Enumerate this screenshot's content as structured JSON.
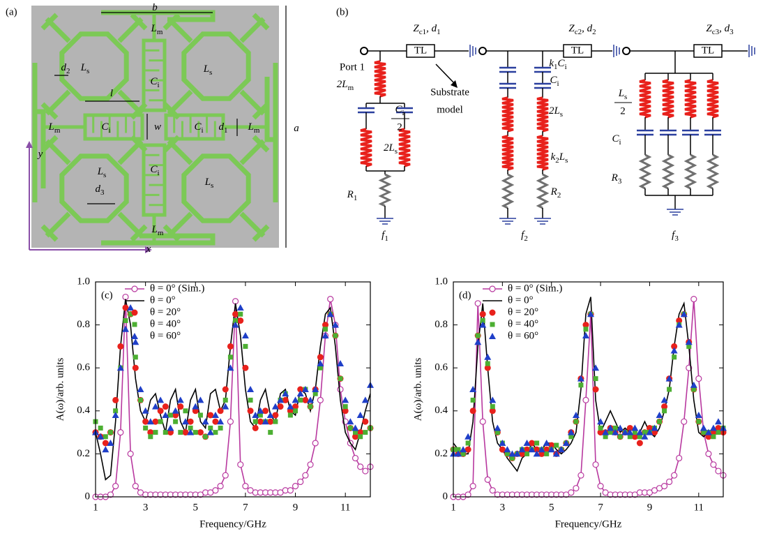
{
  "panel_a": {
    "label": "(a)",
    "labels": [
      [
        "b"
      ],
      [
        "L",
        "m"
      ],
      [
        "d",
        "2"
      ],
      [
        "L",
        "s"
      ],
      [
        "L",
        "s"
      ],
      [
        "C",
        "i"
      ],
      [
        "l"
      ],
      [
        "L",
        "m"
      ],
      [
        "C",
        "i"
      ],
      [
        "w"
      ],
      [
        "C",
        "i"
      ],
      [
        "d",
        "1"
      ],
      [
        "L",
        "m"
      ],
      [
        "a"
      ],
      [
        "y"
      ],
      [
        "L",
        "s"
      ],
      [
        "C",
        "i"
      ],
      [
        "L",
        "s"
      ],
      [
        "d",
        "3"
      ],
      [
        "L",
        "m"
      ],
      [
        "x"
      ]
    ]
  },
  "panel_b": {
    "label": "(b)",
    "labels": [
      [
        "Z",
        "c1",
        ", d",
        "1"
      ],
      "TL",
      [
        "Z",
        "c2",
        ", d",
        "2"
      ],
      "TL",
      [
        "Z",
        "c3",
        ", d",
        "3"
      ],
      "TL",
      "Port 1",
      [
        "2L",
        "m"
      ],
      [
        "C",
        "i"
      ],
      "2",
      "Substrate",
      "model",
      [
        "2L",
        "s"
      ],
      [
        "R",
        "1"
      ],
      [
        "f",
        "1"
      ],
      [
        "k",
        "1",
        "C",
        "i"
      ],
      [
        "C",
        "i"
      ],
      [
        "2L",
        "s"
      ],
      [
        "k",
        "2",
        "L",
        "s"
      ],
      [
        "R",
        "2"
      ],
      [
        "f",
        "2"
      ],
      [
        "L",
        "s"
      ],
      "2",
      [
        "C",
        "i"
      ],
      [
        "R",
        "3"
      ],
      [
        "f",
        "3"
      ]
    ]
  },
  "chart_data": [
    {
      "type": "line",
      "label": "(c)",
      "xlabel": "Frequency/GHz",
      "ylabel": "A(ω)/arb. units",
      "xlim": [
        1,
        12
      ],
      "ylim": [
        0,
        1
      ],
      "xticks": [
        1,
        3,
        5,
        7,
        9,
        11
      ],
      "yticks": [
        0,
        0.2,
        0.4,
        0.6,
        0.8,
        {
          "value": 1,
          "label": "1.0"
        }
      ],
      "legend": "upper left",
      "x": [
        1,
        1.2,
        1.4,
        1.6,
        1.8,
        2,
        2.2,
        2.4,
        2.6,
        2.8,
        3,
        3.2,
        3.4,
        3.6,
        3.8,
        4,
        4.2,
        4.4,
        4.6,
        4.8,
        5,
        5.2,
        5.4,
        5.6,
        5.8,
        6,
        6.2,
        6.4,
        6.6,
        6.8,
        7,
        7.2,
        7.4,
        7.6,
        7.8,
        8,
        8.2,
        8.4,
        8.6,
        8.8,
        9,
        9.2,
        9.4,
        9.6,
        9.8,
        10,
        10.2,
        10.4,
        10.6,
        10.8,
        11,
        11.2,
        11.4,
        11.6,
        11.8,
        12
      ],
      "series": [
        {
          "name": "θ = 0° (Sim.)",
          "color": "#b8389f",
          "marker": "circle-open",
          "line": true,
          "values": [
            0,
            0,
            0,
            0.01,
            0.05,
            0.3,
            0.93,
            0.2,
            0.05,
            0.02,
            0.01,
            0.01,
            0.01,
            0.01,
            0.01,
            0.01,
            0.01,
            0.01,
            0.01,
            0.01,
            0.01,
            0.01,
            0.02,
            0.02,
            0.03,
            0.05,
            0.1,
            0.35,
            0.91,
            0.15,
            0.05,
            0.03,
            0.02,
            0.02,
            0.02,
            0.02,
            0.02,
            0.02,
            0.03,
            0.03,
            0.05,
            0.07,
            0.1,
            0.15,
            0.25,
            0.45,
            0.75,
            0.92,
            0.8,
            0.5,
            0.35,
            0.25,
            0.18,
            0.14,
            0.12,
            0.14
          ]
        },
        {
          "name": "θ = 0°",
          "color": "#000000",
          "marker": "none",
          "line": true,
          "values": [
            0.3,
            0.2,
            0.08,
            0.1,
            0.35,
            0.7,
            0.92,
            0.8,
            0.55,
            0.4,
            0.35,
            0.45,
            0.48,
            0.38,
            0.3,
            0.45,
            0.5,
            0.35,
            0.3,
            0.45,
            0.5,
            0.35,
            0.32,
            0.48,
            0.5,
            0.4,
            0.45,
            0.7,
            0.9,
            0.75,
            0.5,
            0.35,
            0.32,
            0.45,
            0.5,
            0.38,
            0.35,
            0.48,
            0.5,
            0.4,
            0.38,
            0.5,
            0.48,
            0.4,
            0.5,
            0.7,
            0.85,
            0.88,
            0.7,
            0.45,
            0.3,
            0.25,
            0.22,
            0.3,
            0.4,
            0.48
          ]
        },
        {
          "name": "θ = 20°",
          "color": "#e8211c",
          "marker": "circle",
          "line": false,
          "values": [
            0.3,
            0.28,
            0.25,
            0.3,
            0.45,
            0.7,
            0.88,
            0.85,
            0.6,
            0.45,
            0.35,
            0.3,
            0.35,
            0.4,
            0.42,
            0.3,
            0.38,
            0.42,
            0.3,
            0.35,
            0.4,
            0.3,
            0.28,
            0.38,
            0.35,
            0.4,
            0.5,
            0.7,
            0.85,
            0.82,
            0.6,
            0.4,
            0.32,
            0.35,
            0.4,
            0.35,
            0.38,
            0.42,
            0.45,
            0.4,
            0.42,
            0.5,
            0.45,
            0.42,
            0.5,
            0.65,
            0.8,
            0.85,
            0.75,
            0.55,
            0.4,
            0.32,
            0.28,
            0.3,
            0.35,
            0.32
          ]
        },
        {
          "name": "θ = 40°",
          "color": "#4caf32",
          "marker": "square",
          "line": false,
          "values": [
            0.35,
            0.32,
            0.28,
            0.3,
            0.4,
            0.6,
            0.82,
            0.85,
            0.65,
            0.45,
            0.32,
            0.28,
            0.3,
            0.35,
            0.3,
            0.38,
            0.35,
            0.3,
            0.4,
            0.32,
            0.3,
            0.38,
            0.28,
            0.32,
            0.3,
            0.32,
            0.45,
            0.65,
            0.82,
            0.85,
            0.7,
            0.45,
            0.35,
            0.38,
            0.35,
            0.3,
            0.35,
            0.45,
            0.48,
            0.38,
            0.4,
            0.45,
            0.5,
            0.42,
            0.48,
            0.6,
            0.78,
            0.85,
            0.75,
            0.55,
            0.42,
            0.32,
            0.3,
            0.28,
            0.3,
            0.32
          ]
        },
        {
          "name": "θ = 60°",
          "color": "#1f3fc8",
          "marker": "triangle",
          "line": false,
          "values": [
            0.3,
            0.28,
            0.22,
            0.25,
            0.38,
            0.6,
            0.78,
            0.88,
            0.72,
            0.5,
            0.4,
            0.35,
            0.42,
            0.45,
            0.38,
            0.32,
            0.4,
            0.45,
            0.35,
            0.3,
            0.42,
            0.45,
            0.35,
            0.3,
            0.38,
            0.35,
            0.42,
            0.6,
            0.8,
            0.88,
            0.75,
            0.5,
            0.38,
            0.4,
            0.35,
            0.38,
            0.42,
            0.45,
            0.48,
            0.42,
            0.45,
            0.48,
            0.5,
            0.45,
            0.5,
            0.62,
            0.75,
            0.85,
            0.8,
            0.62,
            0.45,
            0.35,
            0.32,
            0.38,
            0.45,
            0.52
          ]
        }
      ]
    },
    {
      "type": "line",
      "label": "(d)",
      "xlabel": "Frequency/GHz",
      "ylabel": "A(ω)/arb. units",
      "xlim": [
        1,
        12
      ],
      "ylim": [
        0,
        1
      ],
      "xticks": [
        1,
        3,
        5,
        7,
        9,
        11
      ],
      "yticks": [
        0,
        0.2,
        0.4,
        0.6,
        0.8,
        {
          "value": 1,
          "label": "1.0"
        }
      ],
      "legend": "upper left",
      "x": [
        1,
        1.2,
        1.4,
        1.6,
        1.8,
        2,
        2.2,
        2.4,
        2.6,
        2.8,
        3,
        3.2,
        3.4,
        3.6,
        3.8,
        4,
        4.2,
        4.4,
        4.6,
        4.8,
        5,
        5.2,
        5.4,
        5.6,
        5.8,
        6,
        6.2,
        6.4,
        6.6,
        6.8,
        7,
        7.2,
        7.4,
        7.6,
        7.8,
        8,
        8.2,
        8.4,
        8.6,
        8.8,
        9,
        9.2,
        9.4,
        9.6,
        9.8,
        10,
        10.2,
        10.4,
        10.6,
        10.8,
        11,
        11.2,
        11.4,
        11.6,
        11.8,
        12
      ],
      "series": [
        {
          "name": "θ = 0° (Sim.)",
          "color": "#b8389f",
          "marker": "circle-open",
          "line": true,
          "values": [
            0,
            0,
            0,
            0.01,
            0.05,
            0.9,
            0.35,
            0.08,
            0.03,
            0.01,
            0.01,
            0.01,
            0.01,
            0.01,
            0.01,
            0.01,
            0.01,
            0.01,
            0.01,
            0.01,
            0.01,
            0.01,
            0.01,
            0.01,
            0.02,
            0.04,
            0.1,
            0.45,
            0.85,
            0.15,
            0.05,
            0.02,
            0.01,
            0.01,
            0.01,
            0.01,
            0.01,
            0.01,
            0.02,
            0.02,
            0.02,
            0.03,
            0.04,
            0.05,
            0.07,
            0.1,
            0.18,
            0.35,
            0.6,
            0.92,
            0.55,
            0.3,
            0.2,
            0.15,
            0.12,
            0.1
          ]
        },
        {
          "name": "θ = 0°",
          "color": "#000000",
          "marker": "none",
          "line": true,
          "values": [
            0.25,
            0.22,
            0.2,
            0.2,
            0.35,
            0.7,
            0.9,
            0.6,
            0.35,
            0.25,
            0.22,
            0.18,
            0.15,
            0.12,
            0.18,
            0.2,
            0.25,
            0.22,
            0.22,
            0.25,
            0.25,
            0.22,
            0.2,
            0.22,
            0.25,
            0.3,
            0.5,
            0.85,
            0.93,
            0.45,
            0.3,
            0.35,
            0.4,
            0.35,
            0.3,
            0.32,
            0.3,
            0.28,
            0.3,
            0.35,
            0.3,
            0.28,
            0.32,
            0.4,
            0.5,
            0.7,
            0.85,
            0.9,
            0.7,
            0.45,
            0.3,
            0.28,
            0.3,
            0.32,
            0.3,
            0.3
          ]
        },
        {
          "name": "θ = 20°",
          "color": "#e8211c",
          "marker": "circle",
          "line": false,
          "values": [
            0.22,
            0.2,
            0.2,
            0.22,
            0.4,
            0.75,
            0.85,
            0.6,
            0.4,
            0.3,
            0.22,
            0.2,
            0.18,
            0.2,
            0.2,
            0.22,
            0.25,
            0.22,
            0.2,
            0.22,
            0.24,
            0.2,
            0.22,
            0.25,
            0.3,
            0.35,
            0.55,
            0.8,
            0.85,
            0.5,
            0.3,
            0.3,
            0.32,
            0.3,
            0.28,
            0.3,
            0.32,
            0.28,
            0.25,
            0.3,
            0.32,
            0.3,
            0.35,
            0.42,
            0.55,
            0.7,
            0.82,
            0.85,
            0.72,
            0.5,
            0.35,
            0.3,
            0.28,
            0.3,
            0.32,
            0.3
          ]
        },
        {
          "name": "θ = 40°",
          "color": "#4caf32",
          "marker": "square",
          "line": false,
          "values": [
            0.22,
            0.22,
            0.2,
            0.25,
            0.45,
            0.75,
            0.82,
            0.62,
            0.42,
            0.3,
            0.25,
            0.2,
            0.18,
            0.2,
            0.22,
            0.2,
            0.22,
            0.25,
            0.22,
            0.2,
            0.22,
            0.24,
            0.22,
            0.25,
            0.28,
            0.35,
            0.52,
            0.78,
            0.85,
            0.55,
            0.32,
            0.28,
            0.3,
            0.32,
            0.28,
            0.3,
            0.28,
            0.3,
            0.28,
            0.3,
            0.3,
            0.32,
            0.35,
            0.4,
            0.5,
            0.65,
            0.8,
            0.85,
            0.7,
            0.5,
            0.35,
            0.3,
            0.3,
            0.28,
            0.3,
            0.32
          ]
        },
        {
          "name": "θ = 60°",
          "color": "#1f3fc8",
          "marker": "triangle",
          "line": false,
          "values": [
            0.2,
            0.2,
            0.22,
            0.28,
            0.5,
            0.72,
            0.8,
            0.65,
            0.45,
            0.32,
            0.25,
            0.22,
            0.2,
            0.2,
            0.22,
            0.25,
            0.22,
            0.2,
            0.22,
            0.25,
            0.22,
            0.2,
            0.22,
            0.25,
            0.3,
            0.38,
            0.55,
            0.75,
            0.85,
            0.6,
            0.35,
            0.3,
            0.32,
            0.3,
            0.32,
            0.3,
            0.3,
            0.32,
            0.3,
            0.28,
            0.3,
            0.32,
            0.38,
            0.45,
            0.55,
            0.68,
            0.8,
            0.85,
            0.72,
            0.52,
            0.38,
            0.32,
            0.3,
            0.32,
            0.35,
            0.32
          ]
        }
      ]
    }
  ]
}
